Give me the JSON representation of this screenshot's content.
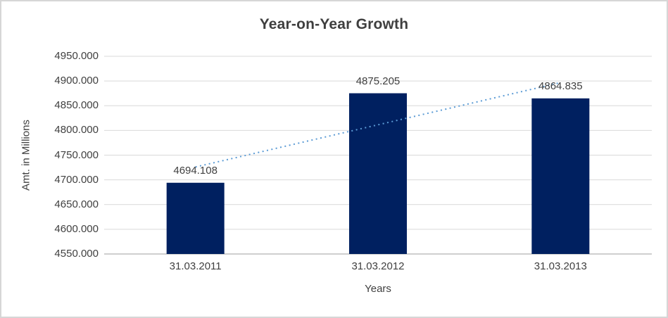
{
  "window": {
    "background": "#FFFFFF",
    "border_color": "#D6D6D6"
  },
  "chart_data": {
    "type": "bar",
    "title": "Year-on-Year Growth",
    "xlabel": "Years",
    "ylabel": "Amt. in Millions",
    "categories": [
      "31.03.2011",
      "31.03.2012",
      "31.03.2013"
    ],
    "values": [
      4694.108,
      4875.205,
      4864.835
    ],
    "data_labels": [
      "4694.108",
      "4875.205",
      "4864.835"
    ],
    "y_ticks": [
      "4950.000",
      "4900.000",
      "4850.000",
      "4800.000",
      "4750.000",
      "4700.000",
      "4650.000",
      "4600.000",
      "4550.000"
    ],
    "ylim": [
      4550,
      4950
    ],
    "grid": true,
    "legend_position": "none",
    "bar_color": "#002060",
    "gridline_color": "#D9D9D9",
    "axis_line_color": "#BFBFBF",
    "text_color": "#404040",
    "trendline": {
      "kind": "linear",
      "style": "dotted",
      "color": "#5B9BD5"
    }
  }
}
